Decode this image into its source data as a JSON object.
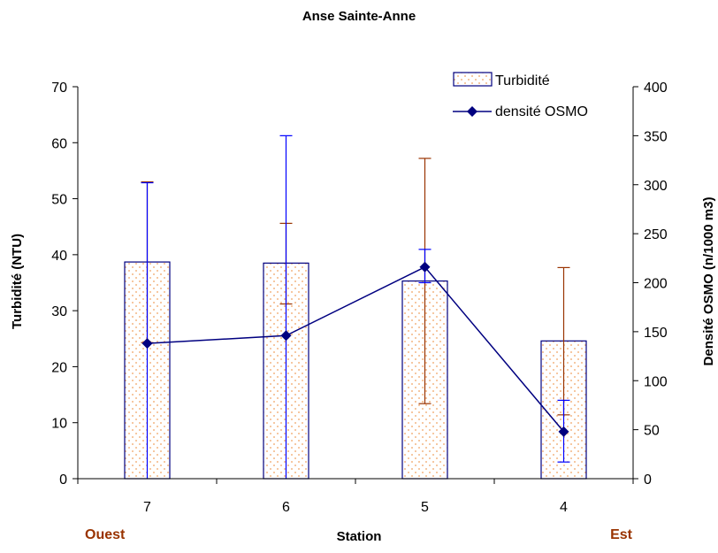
{
  "chart_data": {
    "type": "bar",
    "title": "Anse Sainte-Anne",
    "xlabel": "Station",
    "ylabel": "Turbidité (NTU)",
    "y2label": "Densité OSMO (n/1000 m3)",
    "categories": [
      "7",
      "6",
      "5",
      "4"
    ],
    "ylim": [
      0,
      70
    ],
    "y2lim": [
      0,
      400
    ],
    "yticks": [
      0,
      10,
      20,
      30,
      40,
      50,
      60,
      70
    ],
    "y2ticks": [
      0,
      50,
      100,
      150,
      200,
      250,
      300,
      350,
      400
    ],
    "side_labels": {
      "left": "Ouest",
      "right": "Est"
    },
    "legend_position": "top-right",
    "series": [
      {
        "name": "Turbidité",
        "kind": "bar",
        "axis": "left",
        "values": [
          38.7,
          38.5,
          35.3,
          24.6
        ],
        "error_upper": [
          53.0,
          45.6,
          57.2,
          37.7
        ],
        "error_lower": [
          24.3,
          31.2,
          13.4,
          11.4
        ],
        "error_color": "#993300",
        "fill_color": "#f0a060",
        "border_color": "#000080"
      },
      {
        "name": "densité OSMO",
        "kind": "line",
        "axis": "right",
        "values": [
          138,
          146,
          216,
          48
        ],
        "error_upper": [
          302,
          350,
          234,
          80
        ],
        "error_lower": [
          0,
          0,
          200,
          17
        ],
        "error_color": "#0000ff",
        "line_color": "#000080"
      }
    ]
  }
}
